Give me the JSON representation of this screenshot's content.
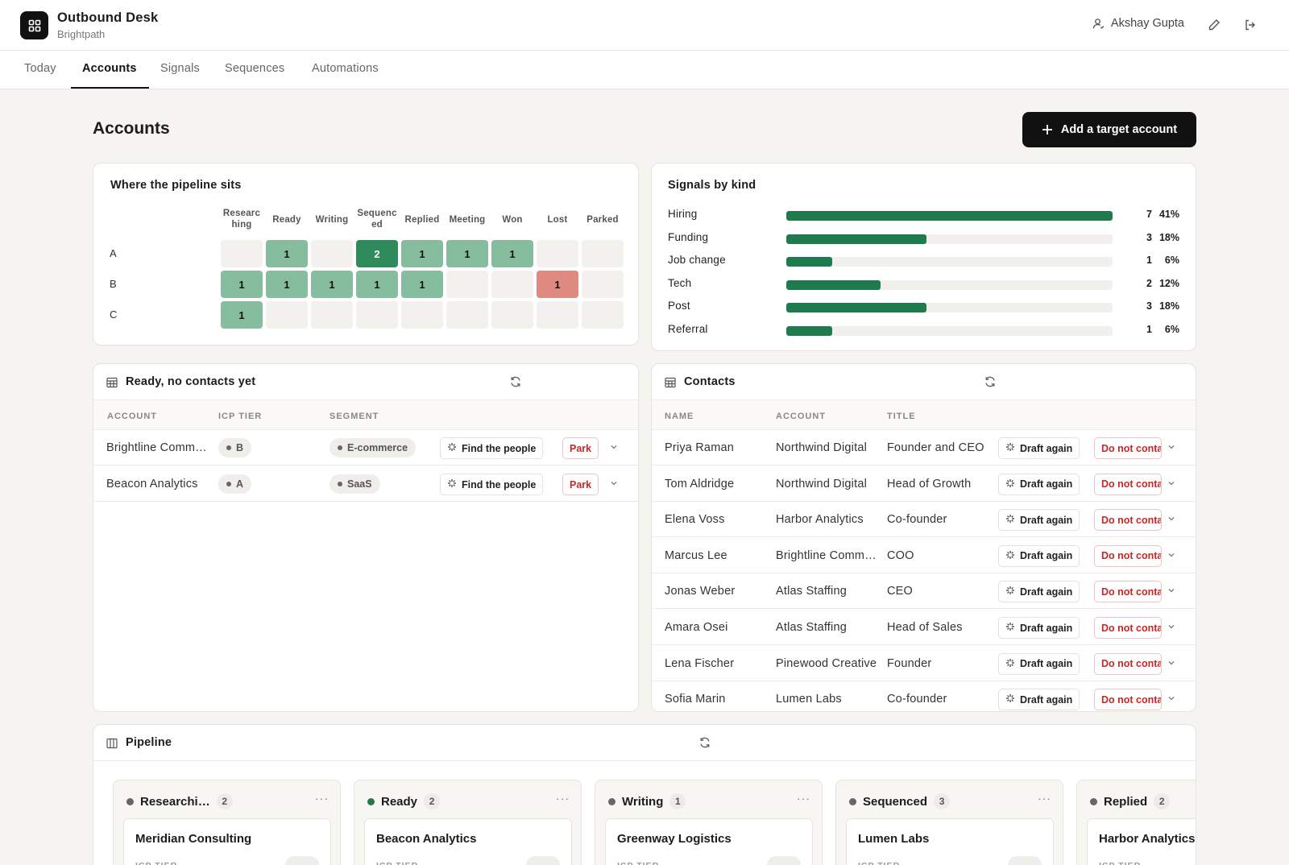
{
  "app": {
    "title": "Outbound Desk",
    "subtitle": "Brightpath",
    "user": "Akshay Gupta"
  },
  "tabs": [
    "Today",
    "Accounts",
    "Signals",
    "Sequences",
    "Automations"
  ],
  "page": {
    "title": "Accounts",
    "cta": "Add a target account"
  },
  "heatmap": {
    "title": "Where the pipeline sits",
    "columns": [
      "Researc hing",
      "Ready",
      "Writing",
      "Sequenc ed",
      "Replied",
      "Meeting",
      "Won",
      "Lost",
      "Parked"
    ],
    "rows": [
      {
        "label": "A",
        "cells": [
          "",
          "1",
          "",
          "2",
          "1",
          "1",
          "1",
          "",
          ""
        ]
      },
      {
        "label": "B",
        "cells": [
          "1",
          "1",
          "1",
          "1",
          "1",
          "",
          "",
          "1",
          ""
        ]
      },
      {
        "label": "C",
        "cells": [
          "1",
          "",
          "",
          "",
          "",
          "",
          "",
          "",
          ""
        ]
      }
    ]
  },
  "signals": {
    "title": "Signals by kind",
    "items": [
      {
        "label": "Hiring",
        "count": "7",
        "pct": "41%",
        "fraction": 1.0
      },
      {
        "label": "Funding",
        "count": "3",
        "pct": "18%",
        "fraction": 0.43
      },
      {
        "label": "Job change",
        "count": "1",
        "pct": "6%",
        "fraction": 0.14
      },
      {
        "label": "Tech",
        "count": "2",
        "pct": "12%",
        "fraction": 0.29
      },
      {
        "label": "Post",
        "count": "3",
        "pct": "18%",
        "fraction": 0.43
      },
      {
        "label": "Referral",
        "count": "1",
        "pct": "6%",
        "fraction": 0.14
      }
    ]
  },
  "ready": {
    "title": "Ready, no contacts yet",
    "headers": [
      "ACCOUNT",
      "ICP TIER",
      "SEGMENT"
    ],
    "find_label": "Find the people",
    "park_label": "Park",
    "rows": [
      {
        "account": "Brightline Comm…",
        "tier": "B",
        "segment": "E-commerce"
      },
      {
        "account": "Beacon Analytics",
        "tier": "A",
        "segment": "SaaS"
      }
    ]
  },
  "contacts": {
    "title": "Contacts",
    "headers": [
      "NAME",
      "ACCOUNT",
      "TITLE"
    ],
    "draft_label": "Draft again",
    "dnc_label": "Do not contact",
    "rows": [
      {
        "name": "Priya Raman",
        "account": "Northwind Digital",
        "title": "Founder and CEO"
      },
      {
        "name": "Tom Aldridge",
        "account": "Northwind Digital",
        "title": "Head of Growth"
      },
      {
        "name": "Elena Voss",
        "account": "Harbor Analytics",
        "title": "Co-founder"
      },
      {
        "name": "Marcus Lee",
        "account": "Brightline Comm…",
        "title": "COO"
      },
      {
        "name": "Jonas Weber",
        "account": "Atlas Staffing",
        "title": "CEO"
      },
      {
        "name": "Amara Osei",
        "account": "Atlas Staffing",
        "title": "Head of Sales"
      },
      {
        "name": "Lena Fischer",
        "account": "Pinewood Creative",
        "title": "Founder"
      },
      {
        "name": "Sofia Marin",
        "account": "Lumen Labs",
        "title": "Co-founder"
      }
    ]
  },
  "pipeline": {
    "title": "Pipeline",
    "more": "···",
    "columns": [
      {
        "label": "Researchi…",
        "count": "2",
        "dot": "#666666",
        "deal": "Meridian Consulting",
        "sub": "ICP TIER"
      },
      {
        "label": "Ready",
        "count": "2",
        "dot": "#1f7a4d",
        "deal": "Beacon Analytics",
        "sub": "ICP TIER"
      },
      {
        "label": "Writing",
        "count": "1",
        "dot": "#666666",
        "deal": "Greenway Logistics",
        "sub": "ICP TIER"
      },
      {
        "label": "Sequenced",
        "count": "3",
        "dot": "#666666",
        "deal": "Lumen Labs",
        "sub": "ICP TIER"
      },
      {
        "label": "Replied",
        "count": "2",
        "dot": "#666666",
        "deal": "Harbor Analytics",
        "sub": "ICP TIER"
      }
    ]
  }
}
